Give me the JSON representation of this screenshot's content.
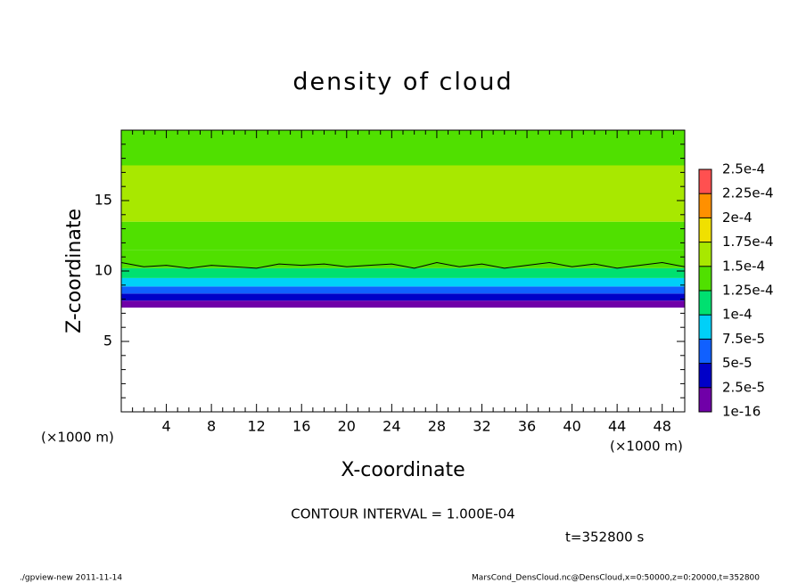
{
  "chart_data": {
    "type": "contour",
    "title": "density of cloud",
    "xlabel": "X-coordinate",
    "ylabel": "Z-coordinate",
    "x_unit": "(×1000 m)",
    "xlim": [
      0,
      50
    ],
    "ylim": [
      0,
      20
    ],
    "xticks": [
      4,
      8,
      12,
      16,
      20,
      24,
      28,
      32,
      36,
      40,
      44,
      48
    ],
    "yticks": [
      5,
      10,
      15
    ],
    "xminorticks": [
      1,
      2,
      3,
      5,
      6,
      7,
      9,
      10,
      11,
      13,
      14,
      15,
      17,
      18,
      19,
      21,
      22,
      23,
      25,
      26,
      27,
      29,
      30,
      31,
      33,
      34,
      35,
      37,
      38,
      39,
      41,
      42,
      43,
      45,
      46,
      47,
      49
    ],
    "yminorticks": [
      1,
      2,
      3,
      4,
      6,
      7,
      8,
      9,
      11,
      12,
      13,
      14,
      16,
      17,
      18,
      19
    ],
    "levels": [
      {
        "value": 1e-16,
        "label": "1e-16"
      },
      {
        "value": 2.5e-05,
        "label": "2.5e-5"
      },
      {
        "value": 5e-05,
        "label": "5e-5"
      },
      {
        "value": 7.5e-05,
        "label": "7.5e-5"
      },
      {
        "value": 0.0001,
        "label": "1e-4"
      },
      {
        "value": 0.000125,
        "label": "1.25e-4"
      },
      {
        "value": 0.00015,
        "label": "1.5e-4"
      },
      {
        "value": 0.000175,
        "label": "1.75e-4"
      },
      {
        "value": 0.0002,
        "label": "2e-4"
      },
      {
        "value": 0.000225,
        "label": "2.25e-4"
      },
      {
        "value": 0.00025,
        "label": "2.5e-4"
      }
    ],
    "colors": [
      "#7000a8",
      "#0000c8",
      "#1060ff",
      "#00d0f8",
      "#00e070",
      "#50e000",
      "#a8e800",
      "#f0e000",
      "#ff9000",
      "#ff5050"
    ],
    "field": {
      "z": [
        7.4,
        7.9,
        8.4,
        8.9,
        9.5,
        10.2,
        11.5,
        13.5,
        17.5
      ],
      "values": [
        1e-05,
        3.5e-05,
        6e-05,
        8.5e-05,
        0.00011,
        0.00013,
        0.000145,
        0.000152,
        0.00014
      ]
    },
    "contour_line": {
      "x": [
        0,
        2,
        4,
        6,
        8,
        10,
        12,
        14,
        16,
        18,
        20,
        22,
        24,
        26,
        28,
        30,
        32,
        34,
        36,
        38,
        40,
        42,
        44,
        46,
        48,
        50
      ],
      "z": [
        10.6,
        10.3,
        10.4,
        10.2,
        10.4,
        10.3,
        10.2,
        10.5,
        10.4,
        10.5,
        10.3,
        10.4,
        10.5,
        10.2,
        10.6,
        10.3,
        10.5,
        10.2,
        10.4,
        10.6,
        10.3,
        10.5,
        10.2,
        10.4,
        10.6,
        10.3
      ]
    },
    "contour_interval": "CONTOUR INTERVAL = 1.000E-04",
    "time_label": "t=352800 s",
    "footer_left": "./gpview-new   2011-11-14",
    "footer_right": "MarsCond_DensCloud.nc@DensCloud,x=0:50000,z=0:20000,t=352800"
  }
}
